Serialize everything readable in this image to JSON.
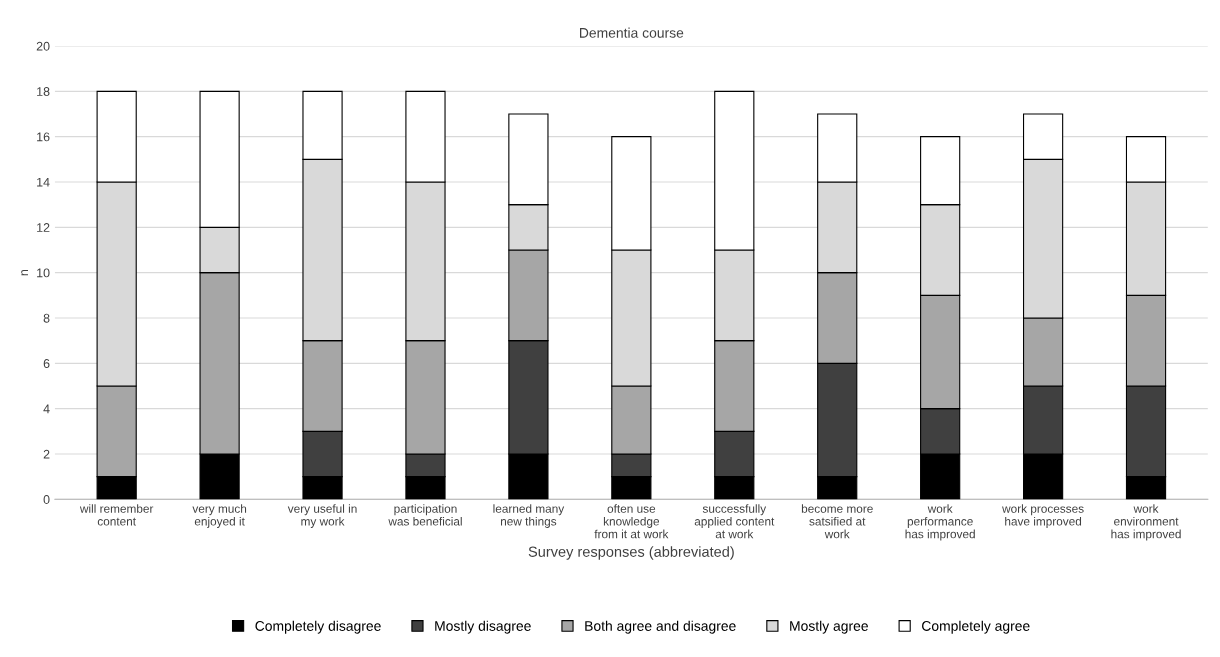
{
  "chart_data": {
    "type": "bar",
    "title": "Dementia course",
    "xlabel": "Survey responses (abbreviated)",
    "ylabel": "n",
    "categories": [
      "will remember\ncontent",
      "very much\nenjoyed it",
      "very useful in\nmy work",
      "participation\nwas beneficial",
      "learned many\nnew things",
      "often use\nknowledge\nfrom it at work",
      "successfully\napplied content\nat work",
      "become more\nsatsified at\nwork",
      "work\nperformance\nhas improved",
      "work processes\nhave improved",
      "work\nenvironment\nhas improved"
    ],
    "stacked": true,
    "series": [
      {
        "name": "Completely disagree",
        "color": "#000000",
        "values": [
          1,
          2,
          1,
          1,
          2,
          1,
          1,
          1,
          2,
          2,
          1
        ]
      },
      {
        "name": "Mostly disagree",
        "color": "#404040",
        "values": [
          0,
          0,
          2,
          1,
          5,
          1,
          2,
          5,
          2,
          3,
          4
        ]
      },
      {
        "name": "Both agree and disagree",
        "color": "#a6a6a6",
        "values": [
          4,
          8,
          4,
          5,
          4,
          3,
          4,
          4,
          5,
          3,
          4
        ]
      },
      {
        "name": "Mostly agree",
        "color": "#d9d9d9",
        "values": [
          9,
          2,
          8,
          7,
          2,
          6,
          4,
          4,
          4,
          7,
          5
        ]
      },
      {
        "name": "Completely agree",
        "color": "#ffffff",
        "values": [
          4,
          6,
          3,
          4,
          4,
          5,
          7,
          3,
          3,
          2,
          2
        ]
      }
    ],
    "ylim": [
      0,
      20
    ],
    "yticks": [
      0,
      2,
      4,
      6,
      8,
      10,
      12,
      14,
      16,
      18,
      20
    ],
    "grid": "y",
    "legend": "bottom"
  }
}
